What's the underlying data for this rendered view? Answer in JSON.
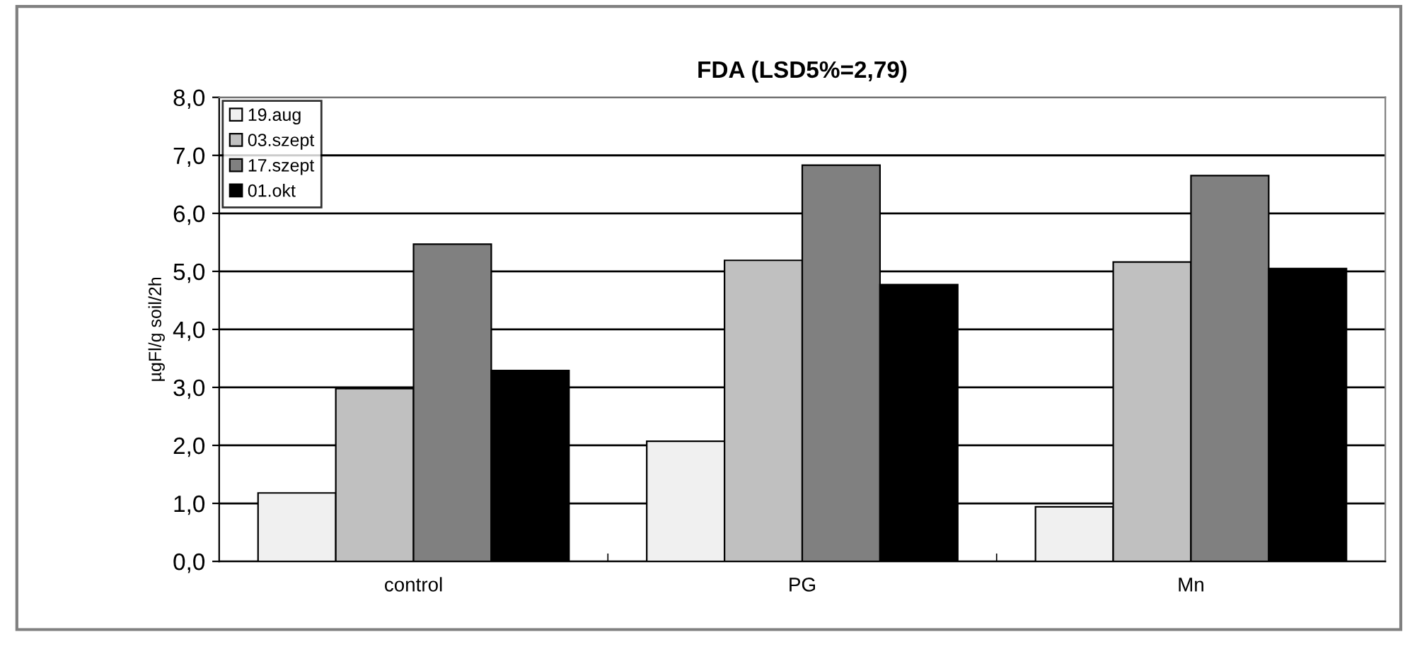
{
  "chart_data": {
    "type": "bar",
    "title": "FDA (LSD5%=2,79)",
    "ylabel": "µgFl/g soil/2h",
    "categories": [
      "control",
      "PG",
      "Mn"
    ],
    "series": [
      {
        "name": "19.aug",
        "color": "#f0f0f0",
        "values": [
          1.18,
          2.07,
          0.94
        ]
      },
      {
        "name": "03.szept",
        "color": "#c0c0c0",
        "values": [
          2.98,
          5.19,
          5.16
        ]
      },
      {
        "name": "17.szept",
        "color": "#808080",
        "values": [
          5.47,
          6.83,
          6.65
        ]
      },
      {
        "name": "01.okt",
        "color": "#000000",
        "values": [
          3.29,
          4.77,
          5.05
        ]
      }
    ],
    "ylim": [
      0,
      8
    ],
    "yticks": [
      {
        "value": 0,
        "label": "0,0"
      },
      {
        "value": 1,
        "label": "1,0"
      },
      {
        "value": 2,
        "label": "2,0"
      },
      {
        "value": 3,
        "label": "3,0"
      },
      {
        "value": 4,
        "label": "4,0"
      },
      {
        "value": 5,
        "label": "5,0"
      },
      {
        "value": 6,
        "label": "6,0"
      },
      {
        "value": 7,
        "label": "7,0"
      },
      {
        "value": 8,
        "label": "8,0"
      }
    ],
    "grid": "y",
    "legend": "top left"
  }
}
